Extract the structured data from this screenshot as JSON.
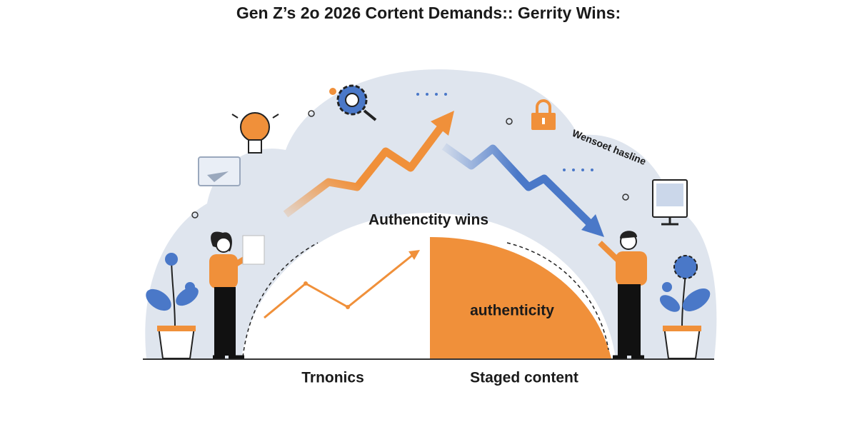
{
  "header": {
    "title": "Gen Z’s 2o 2026 Cortent Demands:: Gerrity Wins:"
  },
  "labels": {
    "tag": "Wensoet hasline",
    "arc_title": "Authenctity wins",
    "orange_label": "authenticity",
    "left_caption": "Trnonics",
    "right_caption": "Staged content"
  }
}
